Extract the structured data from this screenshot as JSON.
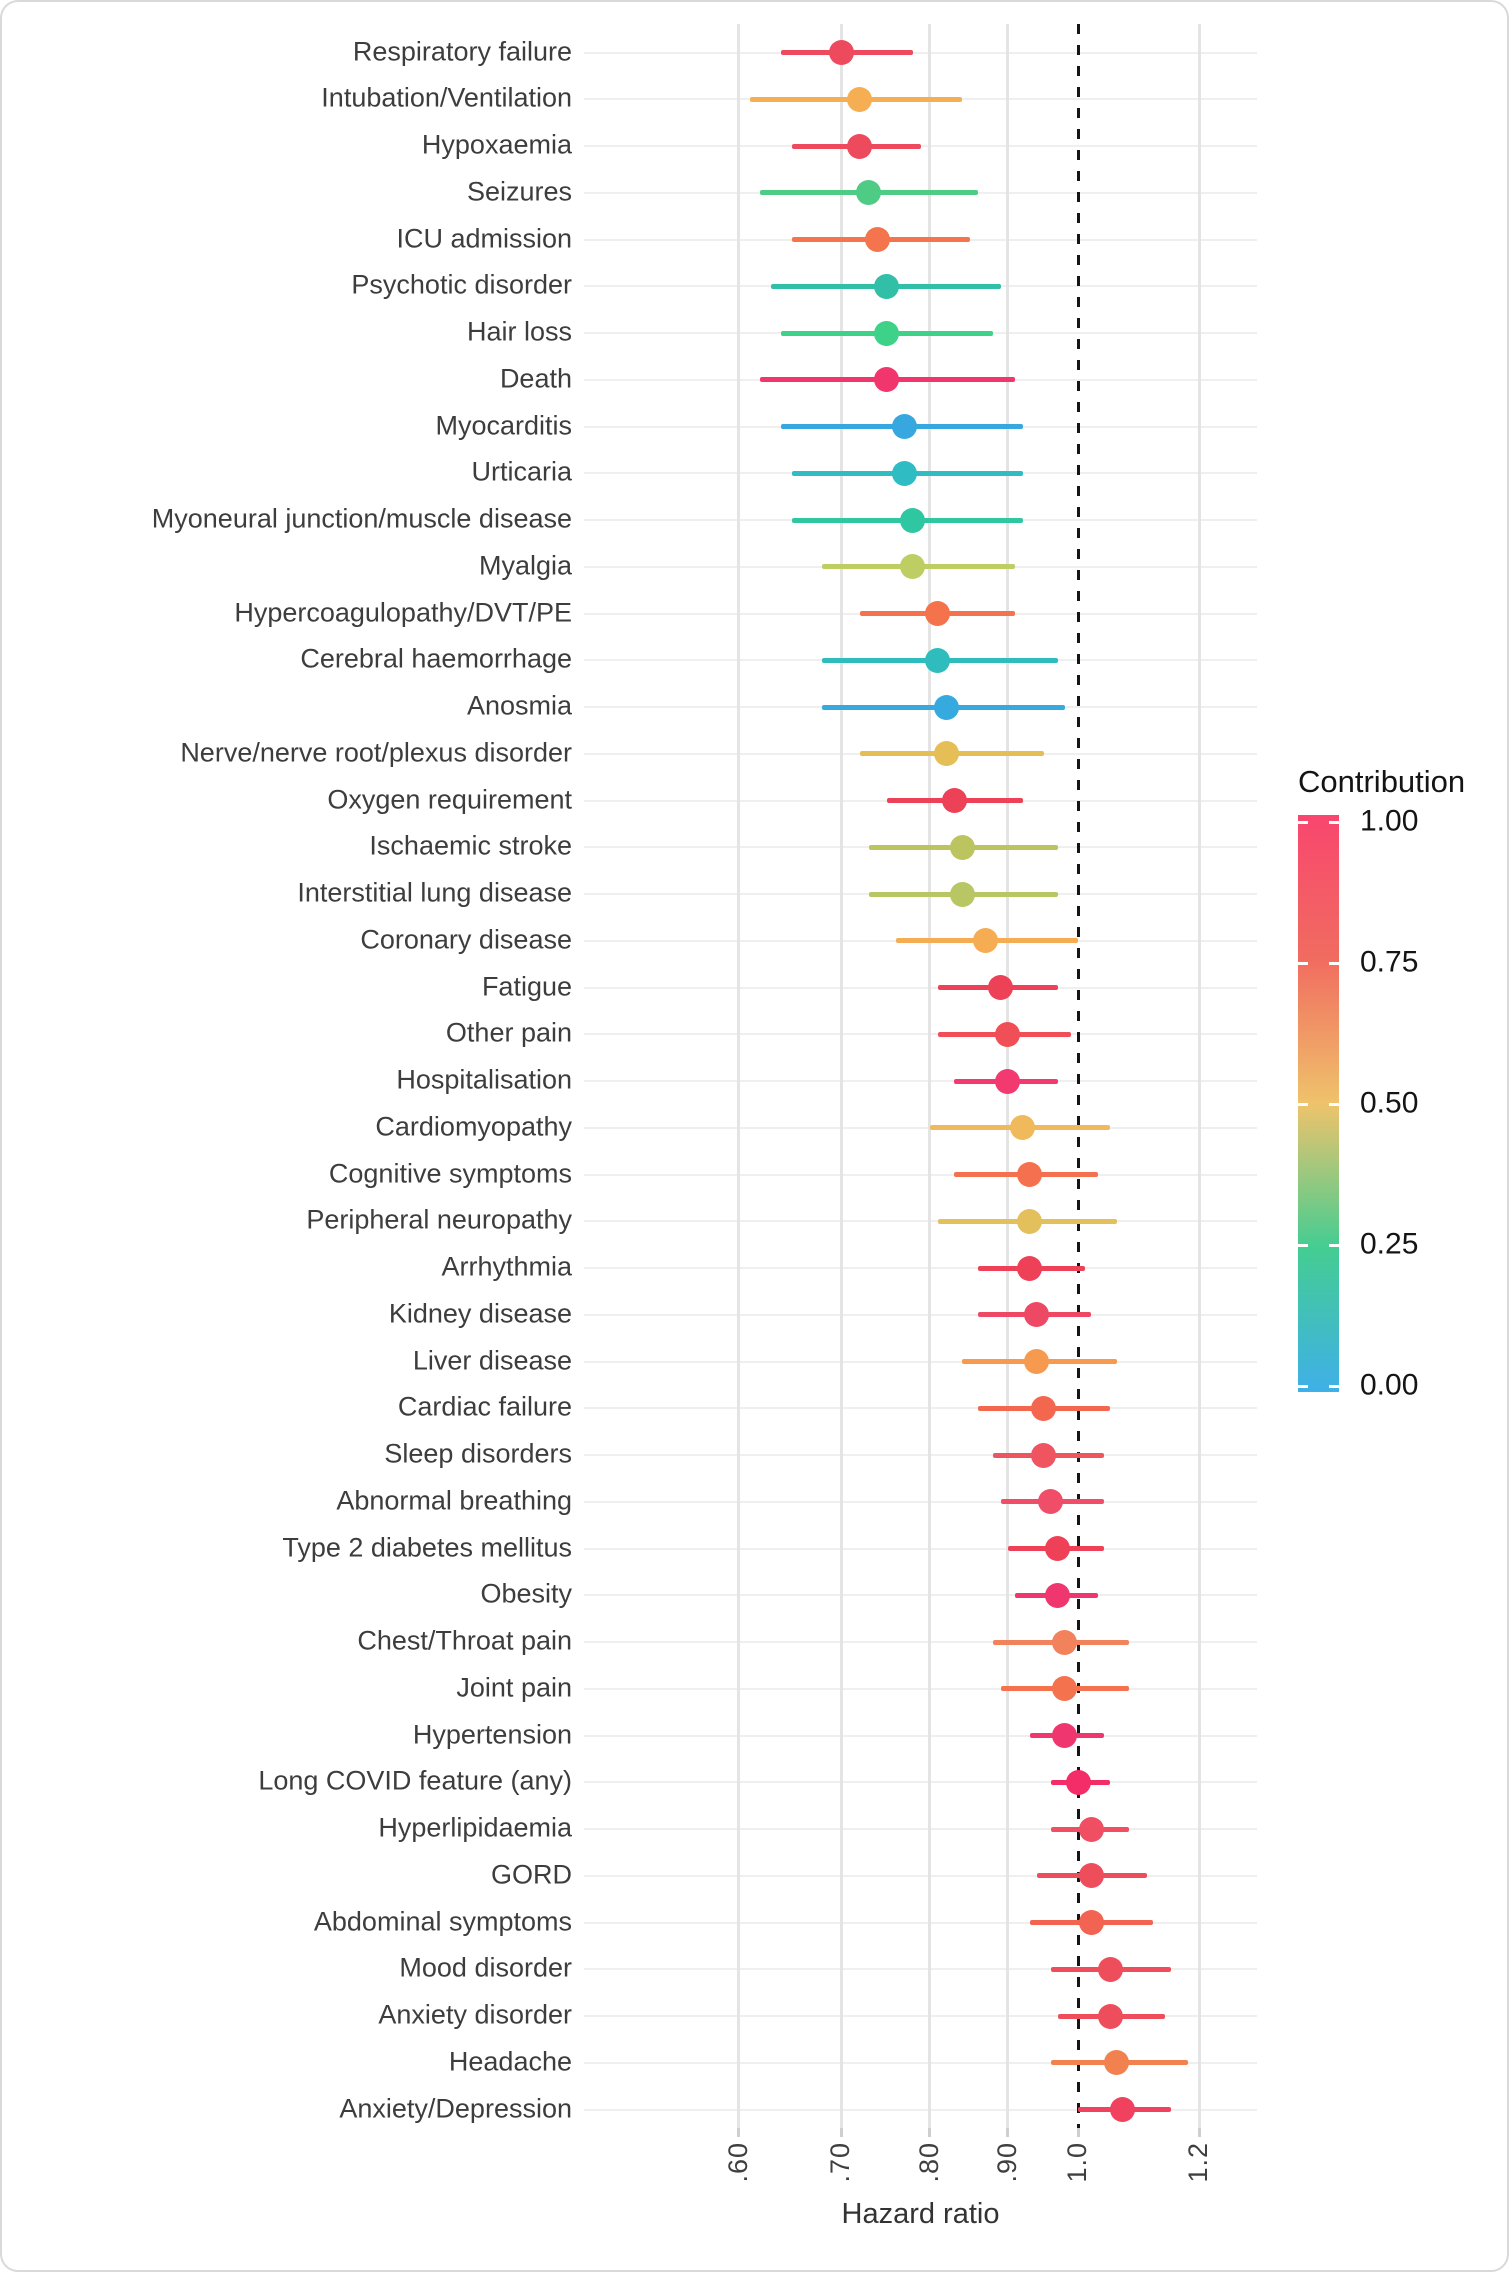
{
  "figure": {
    "xlabel": "Hazard ratio",
    "legend": {
      "title": "Contribution",
      "labels": [
        "1.00",
        "0.75",
        "0.50",
        "0.25",
        "0.00"
      ],
      "values": [
        1.0,
        0.75,
        0.5,
        0.25,
        0.0
      ],
      "gradient_stops": [
        "#3FB0E8",
        "#44CD92",
        "#EFC36B",
        "#F16C60",
        "#F8466E"
      ]
    }
  },
  "chart_data": {
    "type": "scatter",
    "subtype": "forest-plot",
    "title": "",
    "xlabel": "Hazard ratio",
    "ylabel": "",
    "x_scale": "log10",
    "xlim": [
      0.477,
      1.31
    ],
    "x_ticks": [
      {
        "value": 0.6,
        "label": ".60"
      },
      {
        "value": 0.7,
        "label": ".70"
      },
      {
        "value": 0.8,
        "label": ".80"
      },
      {
        "value": 0.9,
        "label": ".90"
      },
      {
        "value": 1.0,
        "label": "1.0"
      },
      {
        "value": 1.2,
        "label": "1.2"
      }
    ],
    "reference_line": 1.0,
    "grid": true,
    "legend_position": "right",
    "color_encoding": "Contribution (0.00 = blue, 0.25 = green, 0.50 = yellow, 0.75 = red-orange, 1.00 = pink)",
    "rows": [
      {
        "label": "Respiratory failure",
        "hr": 0.7,
        "lo": 0.64,
        "hi": 0.78,
        "color": "#ED4A5E"
      },
      {
        "label": "Intubation/Ventilation",
        "hr": 0.72,
        "lo": 0.61,
        "hi": 0.84,
        "color": "#F6AE52"
      },
      {
        "label": "Hypoxaemia",
        "hr": 0.72,
        "lo": 0.65,
        "hi": 0.79,
        "color": "#ED4A5E"
      },
      {
        "label": "Seizures",
        "hr": 0.73,
        "lo": 0.62,
        "hi": 0.86,
        "color": "#4ECB85"
      },
      {
        "label": "ICU admission",
        "hr": 0.74,
        "lo": 0.65,
        "hi": 0.85,
        "color": "#F4744D"
      },
      {
        "label": "Psychotic disorder",
        "hr": 0.75,
        "lo": 0.63,
        "hi": 0.89,
        "color": "#31BFA7"
      },
      {
        "label": "Hair loss",
        "hr": 0.75,
        "lo": 0.64,
        "hi": 0.88,
        "color": "#3ED188"
      },
      {
        "label": "Death",
        "hr": 0.75,
        "lo": 0.62,
        "hi": 0.91,
        "color": "#F1366E"
      },
      {
        "label": "Myocarditis",
        "hr": 0.77,
        "lo": 0.64,
        "hi": 0.92,
        "color": "#36A8DF"
      },
      {
        "label": "Urticaria",
        "hr": 0.77,
        "lo": 0.65,
        "hi": 0.92,
        "color": "#2FBCC3"
      },
      {
        "label": "Myoneural junction/muscle disease",
        "hr": 0.78,
        "lo": 0.65,
        "hi": 0.92,
        "color": "#2EC7A2"
      },
      {
        "label": "Myalgia",
        "hr": 0.78,
        "lo": 0.68,
        "hi": 0.91,
        "color": "#BFCE62"
      },
      {
        "label": "Hypercoagulopathy/DVT/PE",
        "hr": 0.81,
        "lo": 0.72,
        "hi": 0.91,
        "color": "#F4734D"
      },
      {
        "label": "Cerebral haemorrhage",
        "hr": 0.81,
        "lo": 0.68,
        "hi": 0.97,
        "color": "#2FBCBD"
      },
      {
        "label": "Anosmia",
        "hr": 0.82,
        "lo": 0.68,
        "hi": 0.98,
        "color": "#36AADF"
      },
      {
        "label": "Nerve/nerve root/plexus disorder",
        "hr": 0.82,
        "lo": 0.72,
        "hi": 0.95,
        "color": "#E5BE55"
      },
      {
        "label": "Oxygen requirement",
        "hr": 0.83,
        "lo": 0.75,
        "hi": 0.92,
        "color": "#ED4158"
      },
      {
        "label": "Ischaemic stroke",
        "hr": 0.84,
        "lo": 0.73,
        "hi": 0.97,
        "color": "#BCC45F"
      },
      {
        "label": "Interstitial lung disease",
        "hr": 0.84,
        "lo": 0.73,
        "hi": 0.97,
        "color": "#B8C763"
      },
      {
        "label": "Coronary disease",
        "hr": 0.87,
        "lo": 0.76,
        "hi": 1.0,
        "color": "#F6AC52"
      },
      {
        "label": "Fatigue",
        "hr": 0.89,
        "lo": 0.81,
        "hi": 0.97,
        "color": "#ED4158"
      },
      {
        "label": "Other pain",
        "hr": 0.9,
        "lo": 0.81,
        "hi": 0.99,
        "color": "#F04F57"
      },
      {
        "label": "Hospitalisation",
        "hr": 0.9,
        "lo": 0.83,
        "hi": 0.97,
        "color": "#F23A71"
      },
      {
        "label": "Cardiomyopathy",
        "hr": 0.92,
        "lo": 0.8,
        "hi": 1.05,
        "color": "#EFB95C"
      },
      {
        "label": "Cognitive symptoms",
        "hr": 0.93,
        "lo": 0.83,
        "hi": 1.03,
        "color": "#F4704F"
      },
      {
        "label": "Peripheral neuropathy",
        "hr": 0.93,
        "lo": 0.81,
        "hi": 1.06,
        "color": "#E3C05C"
      },
      {
        "label": "Arrhythmia",
        "hr": 0.93,
        "lo": 0.86,
        "hi": 1.01,
        "color": "#EE4158"
      },
      {
        "label": "Kidney disease",
        "hr": 0.94,
        "lo": 0.86,
        "hi": 1.02,
        "color": "#EE4964"
      },
      {
        "label": "Liver disease",
        "hr": 0.94,
        "lo": 0.84,
        "hi": 1.06,
        "color": "#F59A4E"
      },
      {
        "label": "Cardiac failure",
        "hr": 0.95,
        "lo": 0.86,
        "hi": 1.05,
        "color": "#F4674F"
      },
      {
        "label": "Sleep disorders",
        "hr": 0.95,
        "lo": 0.88,
        "hi": 1.04,
        "color": "#EE5560"
      },
      {
        "label": "Abnormal breathing",
        "hr": 0.96,
        "lo": 0.89,
        "hi": 1.04,
        "color": "#F04E68"
      },
      {
        "label": "Type 2 diabetes mellitus",
        "hr": 0.97,
        "lo": 0.9,
        "hi": 1.04,
        "color": "#EE4158"
      },
      {
        "label": "Obesity",
        "hr": 0.97,
        "lo": 0.91,
        "hi": 1.03,
        "color": "#F0366E"
      },
      {
        "label": "Chest/Throat pain",
        "hr": 0.98,
        "lo": 0.88,
        "hi": 1.08,
        "color": "#F2825C"
      },
      {
        "label": "Joint pain",
        "hr": 0.98,
        "lo": 0.89,
        "hi": 1.08,
        "color": "#F4724E"
      },
      {
        "label": "Hypertension",
        "hr": 0.98,
        "lo": 0.93,
        "hi": 1.04,
        "color": "#F0366E"
      },
      {
        "label": "Long COVID feature (any)",
        "hr": 1.0,
        "lo": 0.96,
        "hi": 1.05,
        "color": "#F42D68"
      },
      {
        "label": "Hyperlipidaemia",
        "hr": 1.02,
        "lo": 0.96,
        "hi": 1.08,
        "color": "#F04E63"
      },
      {
        "label": "GORD",
        "hr": 1.02,
        "lo": 0.94,
        "hi": 1.11,
        "color": "#EE4E5B"
      },
      {
        "label": "Abdominal symptoms",
        "hr": 1.02,
        "lo": 0.93,
        "hi": 1.12,
        "color": "#F26352"
      },
      {
        "label": "Mood disorder",
        "hr": 1.05,
        "lo": 0.96,
        "hi": 1.15,
        "color": "#EE4E5B"
      },
      {
        "label": "Anxiety disorder",
        "hr": 1.05,
        "lo": 0.97,
        "hi": 1.14,
        "color": "#EE4E5B"
      },
      {
        "label": "Headache",
        "hr": 1.06,
        "lo": 0.96,
        "hi": 1.18,
        "color": "#F28150"
      },
      {
        "label": "Anxiety/Depression",
        "hr": 1.07,
        "lo": 1.0,
        "hi": 1.15,
        "color": "#F0415F"
      }
    ]
  }
}
